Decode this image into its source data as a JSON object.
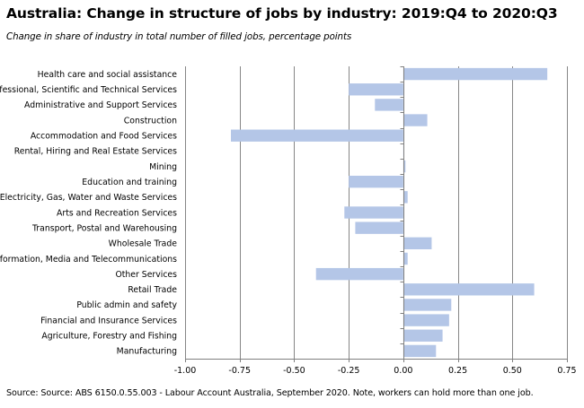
{
  "title": "Australia:  Change  in structure  of jobs by industry:  2019:Q4 to 2020:Q3",
  "subtitle": "Change in share of industry in total number of filled jobs, percentage points",
  "source": "Source: Source: ABS 6150.0.55.003 - Labour Account Australia, September 2020.  Note, workers can hold more than one job.",
  "colors": {
    "bar": "#b4c6e7",
    "grid": "#868686",
    "axis": "#7f7f7f"
  },
  "chart_data": {
    "type": "bar",
    "orientation": "horizontal",
    "categories": [
      "Health care and social assistance",
      "Professional, Scientific and Technical Services",
      "Administrative and Support Services",
      "Construction",
      "Accommodation and Food Services",
      "Rental, Hiring and Real Estate Services",
      "Mining",
      "Education and training",
      "Electricity, Gas, Water and Waste Services",
      "Arts and Recreation Services",
      "Transport, Postal and Warehousing",
      "Wholesale Trade",
      "Information, Media and Telecommunications",
      "Other Services",
      "Retail Trade",
      "Public admin and safety",
      "Financial and Insurance Services",
      "Agriculture, Forestry and Fishing",
      "Manufacturing"
    ],
    "values": [
      0.66,
      -0.25,
      -0.13,
      0.11,
      -0.79,
      0.0,
      0.01,
      -0.25,
      0.02,
      -0.27,
      -0.22,
      0.13,
      0.02,
      -0.4,
      0.6,
      0.22,
      0.21,
      0.18,
      0.15
    ],
    "xlim": [
      -1.0,
      0.75
    ],
    "xticks": [
      -1.0,
      -0.75,
      -0.5,
      -0.25,
      0.0,
      0.25,
      0.5,
      0.75
    ],
    "xtick_labels": [
      "-1.00",
      "-0.75",
      "-0.50",
      "-0.25",
      "0.00",
      "0.25",
      "0.50",
      "0.75"
    ],
    "xlabel": "",
    "ylabel": "",
    "grid": "vertical",
    "legend": "none"
  }
}
